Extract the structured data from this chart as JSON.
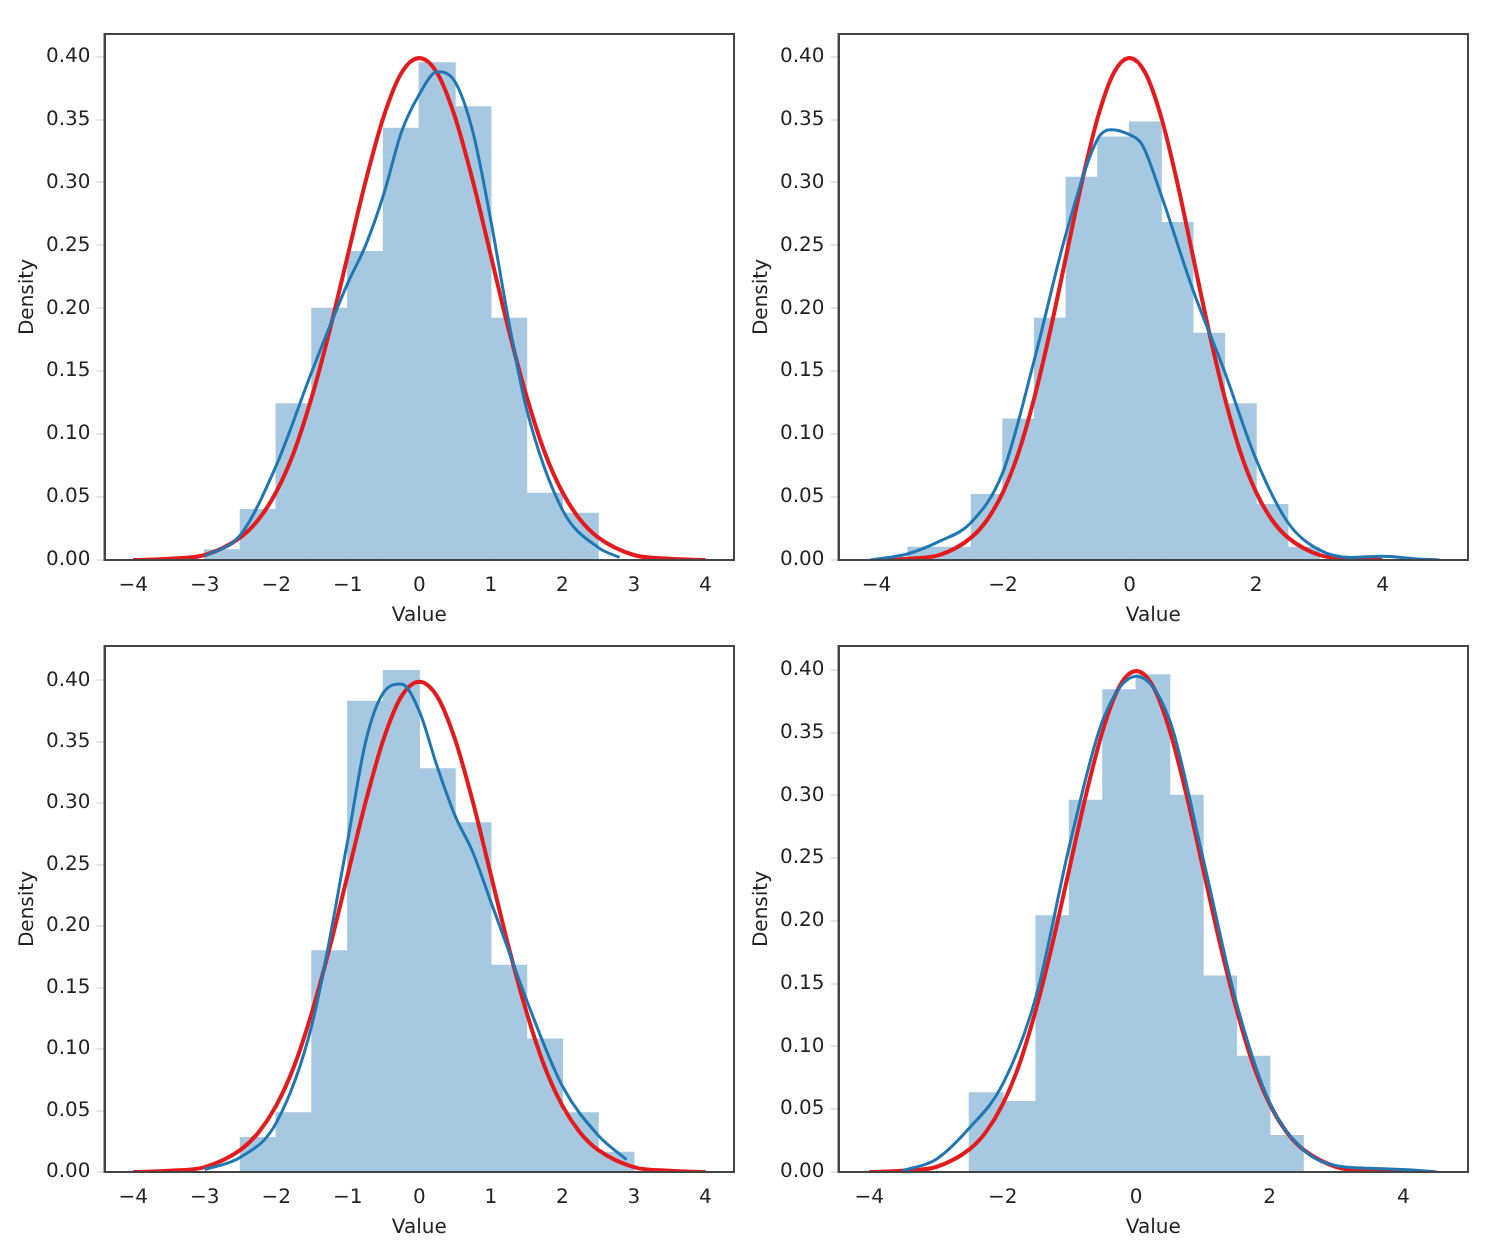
{
  "chart_data": [
    {
      "type": "histogram",
      "xlabel": "Value",
      "ylabel": "Density",
      "color": "#a6c8e0",
      "grid": false,
      "legend": false,
      "bins": [
        -3,
        -2.5,
        -2,
        -1.5,
        -1,
        -0.5,
        0,
        0.5,
        1,
        1.5,
        2,
        2.5
      ],
      "values": [
        0.008,
        0.04,
        0.124,
        0.2,
        0.245,
        0.343,
        0.395,
        0.36,
        0.192,
        0.053,
        0.037
      ],
      "series": [
        {
          "type": "line",
          "color": "#1f77b4",
          "x": [
            -3,
            -2.5,
            -2,
            -1.5,
            -1,
            -0.75,
            -0.5,
            -0.25,
            0,
            0.25,
            0.5,
            0.75,
            1,
            1.25,
            1.5,
            2,
            2.5,
            2.8
          ],
          "values": [
            0.003,
            0.02,
            0.075,
            0.15,
            0.22,
            0.25,
            0.29,
            0.34,
            0.37,
            0.388,
            0.38,
            0.34,
            0.27,
            0.19,
            0.12,
            0.04,
            0.01,
            0.002
          ]
        },
        {
          "type": "line",
          "color": "#e41a1c",
          "x": [
            -4,
            -3.5,
            -3,
            -2.5,
            -2.25,
            -2,
            -1.75,
            -1.5,
            -1.25,
            -1,
            -0.75,
            -0.5,
            -0.25,
            0,
            0.25,
            0.5,
            0.75,
            1,
            1.25,
            1.5,
            1.75,
            2,
            2.25,
            2.5,
            3,
            3.5,
            4
          ],
          "values": [
            0,
            0.001,
            0.004,
            0.018,
            0.032,
            0.054,
            0.086,
            0.13,
            0.183,
            0.242,
            0.301,
            0.352,
            0.387,
            0.399,
            0.387,
            0.352,
            0.301,
            0.242,
            0.183,
            0.13,
            0.086,
            0.054,
            0.032,
            0.018,
            0.004,
            0.001,
            0
          ]
        }
      ],
      "xlim": [
        -4.4,
        4.4
      ],
      "ylim": [
        0,
        0.418
      ],
      "xticks": [
        {
          "value": -4,
          "label": "−4"
        },
        {
          "value": -3,
          "label": "−3"
        },
        {
          "value": -2,
          "label": "−2"
        },
        {
          "value": -1,
          "label": "−1"
        },
        0,
        1,
        2,
        3,
        4
      ],
      "yticks": [
        {
          "value": 0,
          "label": "0.00"
        },
        {
          "value": 0.05,
          "label": "0.05"
        },
        {
          "value": 0.1,
          "label": "0.10"
        },
        {
          "value": 0.15,
          "label": "0.15"
        },
        {
          "value": 0.2,
          "label": "0.20"
        },
        {
          "value": 0.25,
          "label": "0.25"
        },
        {
          "value": 0.3,
          "label": "0.30"
        },
        {
          "value": 0.35,
          "label": "0.35"
        },
        {
          "value": 0.4,
          "label": "0.40"
        }
      ]
    },
    {
      "type": "histogram",
      "xlabel": "Value",
      "ylabel": "Density",
      "color": "#a6c8e0",
      "grid": false,
      "legend": false,
      "bins": [
        -3.5,
        -3,
        -2.5,
        -2,
        -1.5,
        -1,
        -0.5,
        0,
        0.5,
        1,
        1.5,
        2,
        2.5,
        3
      ],
      "values": [
        0.01,
        0.01,
        0.052,
        0.112,
        0.192,
        0.304,
        0.336,
        0.348,
        0.268,
        0.18,
        0.124,
        0.044,
        0.01
      ],
      "series": [
        {
          "type": "line",
          "color": "#1f77b4",
          "x": [
            -4.1,
            -3.5,
            -3,
            -2.5,
            -2,
            -1.5,
            -1,
            -0.5,
            -0.3,
            0,
            0.2,
            0.5,
            1,
            1.5,
            2,
            2.5,
            3,
            3.5,
            4,
            4.5,
            4.9
          ],
          "values": [
            0,
            0.005,
            0.015,
            0.03,
            0.07,
            0.16,
            0.26,
            0.335,
            0.342,
            0.338,
            0.33,
            0.29,
            0.215,
            0.15,
            0.08,
            0.03,
            0.008,
            0.002,
            0.003,
            0.001,
            0
          ]
        },
        {
          "type": "line",
          "color": "#e41a1c",
          "x": [
            -4,
            -3.5,
            -3,
            -2.5,
            -2.25,
            -2,
            -1.75,
            -1.5,
            -1.25,
            -1,
            -0.75,
            -0.5,
            -0.25,
            0,
            0.25,
            0.5,
            0.75,
            1,
            1.25,
            1.5,
            1.75,
            2,
            2.25,
            2.5,
            3,
            3.5,
            4
          ],
          "values": [
            0,
            0.001,
            0.004,
            0.018,
            0.032,
            0.054,
            0.086,
            0.13,
            0.183,
            0.242,
            0.301,
            0.352,
            0.387,
            0.399,
            0.387,
            0.352,
            0.301,
            0.242,
            0.183,
            0.13,
            0.086,
            0.054,
            0.032,
            0.018,
            0.004,
            0.001,
            0
          ]
        }
      ],
      "xlim": [
        -4.6,
        5.35
      ],
      "ylim": [
        0,
        0.418
      ],
      "xticks": [
        {
          "value": -4,
          "label": "−4"
        },
        {
          "value": -2,
          "label": "−2"
        },
        0,
        2,
        4
      ],
      "yticks": [
        {
          "value": 0,
          "label": "0.00"
        },
        {
          "value": 0.05,
          "label": "0.05"
        },
        {
          "value": 0.1,
          "label": "0.10"
        },
        {
          "value": 0.15,
          "label": "0.15"
        },
        {
          "value": 0.2,
          "label": "0.20"
        },
        {
          "value": 0.25,
          "label": "0.25"
        },
        {
          "value": 0.3,
          "label": "0.30"
        },
        {
          "value": 0.35,
          "label": "0.35"
        },
        {
          "value": 0.4,
          "label": "0.40"
        }
      ]
    },
    {
      "type": "histogram",
      "xlabel": "Value",
      "ylabel": "Density",
      "color": "#a6c8e0",
      "grid": false,
      "legend": false,
      "bins": [
        -2.5,
        -2,
        -1.5,
        -1,
        -0.5,
        0,
        0.5,
        1,
        1.5,
        2,
        2.5,
        3
      ],
      "values": [
        0.028,
        0.048,
        0.18,
        0.383,
        0.408,
        0.328,
        0.284,
        0.168,
        0.108,
        0.048,
        0.016
      ],
      "series": [
        {
          "type": "line",
          "color": "#1f77b4",
          "x": [
            -3,
            -2.5,
            -2,
            -1.5,
            -1,
            -0.75,
            -0.5,
            -0.25,
            0,
            0.25,
            0.5,
            0.75,
            1,
            1.25,
            1.5,
            2,
            2.5,
            2.9
          ],
          "values": [
            0.002,
            0.012,
            0.04,
            0.12,
            0.27,
            0.35,
            0.39,
            0.397,
            0.375,
            0.33,
            0.29,
            0.26,
            0.22,
            0.18,
            0.14,
            0.07,
            0.03,
            0.01
          ]
        },
        {
          "type": "line",
          "color": "#e41a1c",
          "x": [
            -4,
            -3.5,
            -3,
            -2.5,
            -2.25,
            -2,
            -1.75,
            -1.5,
            -1.25,
            -1,
            -0.75,
            -0.5,
            -0.25,
            0,
            0.25,
            0.5,
            0.75,
            1,
            1.25,
            1.5,
            1.75,
            2,
            2.25,
            2.5,
            3,
            3.5,
            4
          ],
          "values": [
            0,
            0.001,
            0.004,
            0.018,
            0.032,
            0.054,
            0.086,
            0.13,
            0.183,
            0.242,
            0.301,
            0.352,
            0.387,
            0.399,
            0.387,
            0.352,
            0.301,
            0.242,
            0.183,
            0.13,
            0.086,
            0.054,
            0.032,
            0.018,
            0.004,
            0.001,
            0
          ]
        }
      ],
      "xlim": [
        -4.4,
        4.4
      ],
      "ylim": [
        0,
        0.428
      ],
      "xticks": [
        {
          "value": -4,
          "label": "−4"
        },
        {
          "value": -3,
          "label": "−3"
        },
        {
          "value": -2,
          "label": "−2"
        },
        {
          "value": -1,
          "label": "−1"
        },
        0,
        1,
        2,
        3,
        4
      ],
      "yticks": [
        {
          "value": 0,
          "label": "0.00"
        },
        {
          "value": 0.05,
          "label": "0.05"
        },
        {
          "value": 0.1,
          "label": "0.10"
        },
        {
          "value": 0.15,
          "label": "0.15"
        },
        {
          "value": 0.2,
          "label": "0.20"
        },
        {
          "value": 0.25,
          "label": "0.25"
        },
        {
          "value": 0.3,
          "label": "0.30"
        },
        {
          "value": 0.35,
          "label": "0.35"
        },
        {
          "value": 0.4,
          "label": "0.40"
        }
      ]
    },
    {
      "type": "histogram",
      "xlabel": "Value",
      "ylabel": "Density",
      "color": "#a6c8e0",
      "grid": false,
      "legend": false,
      "bins": [
        -2.5,
        -2,
        -1.5,
        -1,
        -0.5,
        0,
        0.5,
        1,
        1.5,
        2,
        2.5
      ],
      "values": [
        0.063,
        0.056,
        0.204,
        0.296,
        0.384,
        0.396,
        0.3,
        0.156,
        0.092,
        0.029
      ],
      "series": [
        {
          "type": "line",
          "color": "#1f77b4",
          "x": [
            -3.5,
            -3,
            -2.5,
            -2,
            -1.5,
            -1,
            -0.5,
            0,
            0.5,
            1,
            1.5,
            2,
            2.5,
            3,
            3.5,
            4,
            4.5
          ],
          "values": [
            0.001,
            0.01,
            0.035,
            0.07,
            0.14,
            0.26,
            0.36,
            0.395,
            0.36,
            0.25,
            0.135,
            0.055,
            0.018,
            0.005,
            0.003,
            0.002,
            0
          ]
        },
        {
          "type": "line",
          "color": "#e41a1c",
          "x": [
            -4,
            -3.5,
            -3,
            -2.5,
            -2.25,
            -2,
            -1.75,
            -1.5,
            -1.25,
            -1,
            -0.75,
            -0.5,
            -0.25,
            0,
            0.25,
            0.5,
            0.75,
            1,
            1.25,
            1.5,
            1.75,
            2,
            2.25,
            2.5,
            3,
            3.5,
            4
          ],
          "values": [
            0,
            0.001,
            0.004,
            0.018,
            0.032,
            0.054,
            0.086,
            0.13,
            0.183,
            0.242,
            0.301,
            0.352,
            0.387,
            0.399,
            0.387,
            0.352,
            0.301,
            0.242,
            0.183,
            0.13,
            0.086,
            0.054,
            0.032,
            0.018,
            0.004,
            0.001,
            0
          ]
        }
      ],
      "xlim": [
        -4.46,
        4.97
      ],
      "ylim": [
        0,
        0.419
      ],
      "xticks": [
        {
          "value": -4,
          "label": "−4"
        },
        {
          "value": -2,
          "label": "−2"
        },
        0,
        2,
        4
      ],
      "yticks": [
        {
          "value": 0,
          "label": "0.00"
        },
        {
          "value": 0.05,
          "label": "0.05"
        },
        {
          "value": 0.1,
          "label": "0.10"
        },
        {
          "value": 0.15,
          "label": "0.15"
        },
        {
          "value": 0.2,
          "label": "0.20"
        },
        {
          "value": 0.25,
          "label": "0.25"
        },
        {
          "value": 0.3,
          "label": "0.30"
        },
        {
          "value": 0.35,
          "label": "0.35"
        },
        {
          "value": 0.4,
          "label": "0.40"
        }
      ]
    }
  ]
}
